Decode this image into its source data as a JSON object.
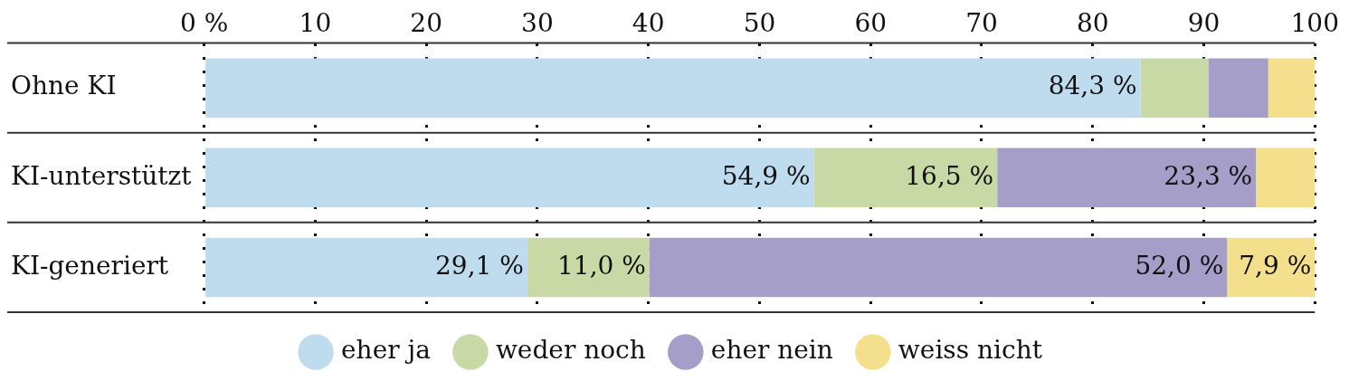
{
  "chart_data": {
    "type": "bar",
    "orientation": "horizontal",
    "stacked": true,
    "categories": [
      "Ohne KI",
      "KI-unterstützt",
      "KI-generiert"
    ],
    "series": [
      {
        "name": "eher ja",
        "color": "#bfdcee",
        "values": [
          84.3,
          54.9,
          29.1
        ],
        "value_labels": [
          "84,3 %",
          "54,9 %",
          "29,1 %"
        ]
      },
      {
        "name": "weder noch",
        "color": "#c9d9a5",
        "values": [
          6.1,
          16.5,
          11.0
        ],
        "value_labels": [
          null,
          "16,5 %",
          "11,0 %"
        ]
      },
      {
        "name": "eher nein",
        "color": "#a59ec8",
        "values": [
          5.4,
          23.3,
          52.0
        ],
        "value_labels": [
          null,
          "23,3 %",
          "52,0 %"
        ]
      },
      {
        "name": "weiss nicht",
        "color": "#f4e08c",
        "values": [
          4.2,
          5.3,
          7.9
        ],
        "value_labels": [
          null,
          null,
          "7,9 %"
        ]
      }
    ],
    "xlim": [
      0,
      100
    ],
    "xticks": [
      {
        "value": 0,
        "label": "0 %"
      },
      10,
      20,
      30,
      40,
      50,
      60,
      70,
      80,
      90,
      100
    ],
    "grid": "x",
    "legend": "bottom"
  }
}
